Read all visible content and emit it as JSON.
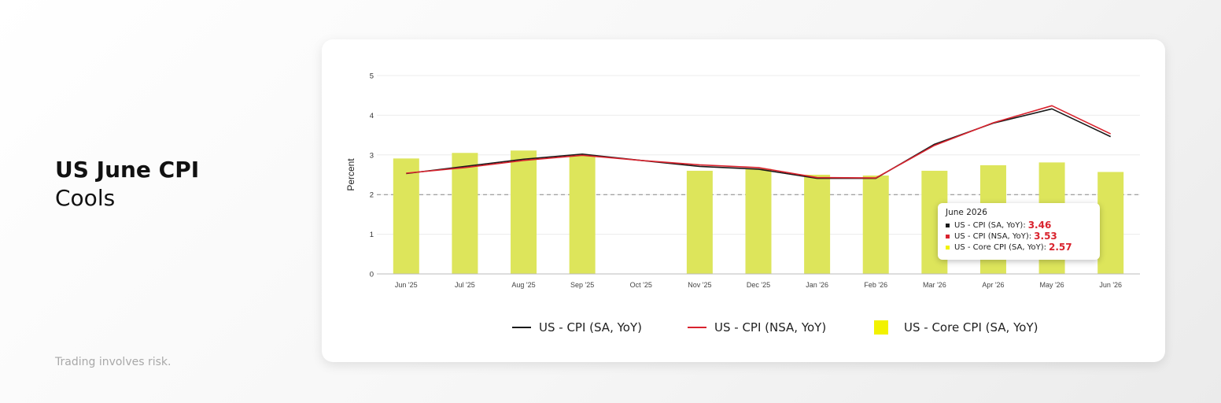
{
  "headline": {
    "bold": "US June CPI",
    "regular": "Cools"
  },
  "disclaimer": "Trading involves risk.",
  "chart_data": {
    "type": "bar+line",
    "categories": [
      "Jun '25",
      "Jul '25",
      "Aug '25",
      "Sep '25",
      "Oct '25",
      "Nov '25",
      "Dec '25",
      "Jan '26",
      "Feb '26",
      "Mar '26",
      "Apr '26",
      "May '26",
      "Jun '26"
    ],
    "ylabel": "Percent",
    "ylim": [
      0,
      5
    ],
    "yticks": [
      0,
      1,
      2,
      3,
      4,
      5
    ],
    "reference_line": 2,
    "series": [
      {
        "name": "US - CPI (SA, YoY)",
        "type": "line",
        "color": "#1a1a1a",
        "values": [
          2.53,
          2.71,
          2.89,
          3.02,
          2.86,
          2.71,
          2.64,
          2.41,
          2.41,
          3.27,
          3.8,
          4.16,
          3.46
        ]
      },
      {
        "name": "US - CPI (NSA, YoY)",
        "type": "line",
        "color": "#d9232e",
        "values": [
          2.54,
          2.68,
          2.86,
          2.99,
          2.86,
          2.75,
          2.68,
          2.43,
          2.42,
          3.24,
          3.81,
          4.24,
          3.53
        ]
      },
      {
        "name": "US - Core CPI (SA, YoY)",
        "type": "bar",
        "color": "#dde55b",
        "values": [
          2.91,
          3.05,
          3.11,
          3.0,
          null,
          2.6,
          2.65,
          2.5,
          2.48,
          2.6,
          2.74,
          2.81,
          2.57
        ]
      }
    ]
  },
  "legend": [
    {
      "label": "US - CPI (SA, YoY)",
      "color": "#1a1a1a",
      "shape": "line"
    },
    {
      "label": "US - CPI (NSA, YoY)",
      "color": "#d9232e",
      "shape": "line"
    },
    {
      "label": "US - Core CPI (SA, YoY)",
      "color": "#f2f200",
      "shape": "square"
    }
  ],
  "tooltip": {
    "title": "June 2026",
    "rows": [
      {
        "label": "US - CPI (SA, YoY):",
        "value": "3.46",
        "dot_color": "#1a1a1a"
      },
      {
        "label": "US - CPI (NSA, YoY):",
        "value": "3.53",
        "dot_color": "#d9232e"
      },
      {
        "label": "US - Core CPI (SA, YoY):",
        "value": "2.57",
        "dot_color": "#f2f200"
      }
    ],
    "value_color": "#d9232e"
  }
}
